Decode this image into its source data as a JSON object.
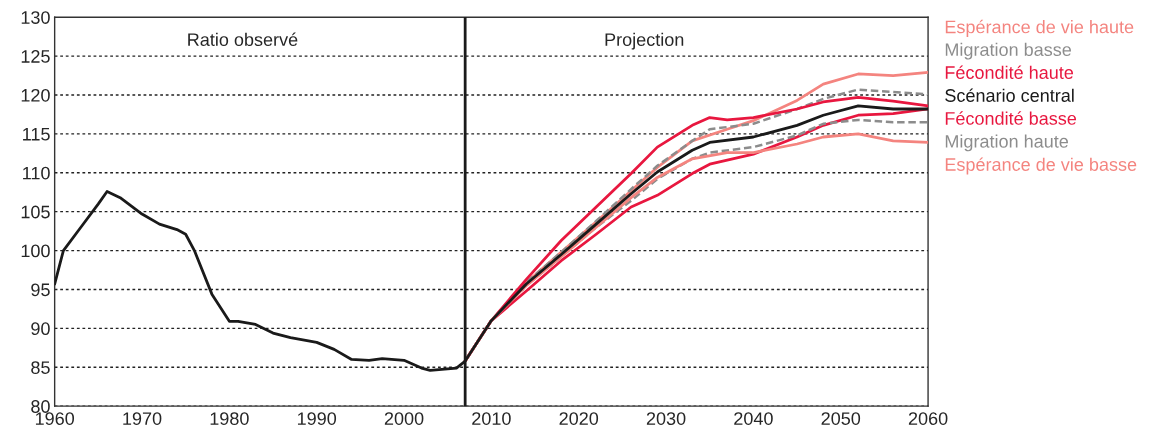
{
  "chart_data": {
    "type": "line",
    "annotations": [
      "Ratio observé",
      "Projection"
    ],
    "series": [
      {
        "name": "Espérance de vie haute",
        "color": "#f4847f",
        "line_style": "solid",
        "x": [
          2007,
          2010,
          2014,
          2018,
          2022,
          2026,
          2029,
          2033,
          2037,
          2040,
          2045,
          2048,
          2052,
          2056,
          2060
        ],
        "values": [
          85.8,
          91,
          95.9,
          99.8,
          103.7,
          107.7,
          110.7,
          114.1,
          115.6,
          116.7,
          119.3,
          121.4,
          122.7,
          122.5,
          122.9
        ]
      },
      {
        "name": "Migration basse",
        "color": "#8c8c8c",
        "line_style": "dashed",
        "x": [
          2007,
          2010,
          2014,
          2018,
          2022,
          2026,
          2029,
          2033,
          2035,
          2040,
          2045,
          2048,
          2052,
          2056,
          2060
        ],
        "values": [
          85.8,
          91,
          95.9,
          99.8,
          103.8,
          107.9,
          110.9,
          114.1,
          115.6,
          116.3,
          118.2,
          119.5,
          120.7,
          120.4,
          120.1
        ]
      },
      {
        "name": "Fécondité haute",
        "color": "#e8173f",
        "line_style": "solid",
        "x": [
          2007,
          2010,
          2014,
          2018,
          2022,
          2026,
          2029,
          2033,
          2035,
          2037,
          2040,
          2045,
          2048,
          2052,
          2056,
          2060
        ],
        "values": [
          85.8,
          91,
          96.3,
          101.3,
          105.6,
          109.9,
          113.3,
          116.1,
          117.1,
          116.8,
          117.1,
          118.2,
          119.1,
          119.7,
          119.2,
          118.6
        ]
      },
      {
        "name": "Scénario central",
        "color": "#1a1a1a",
        "line_style": "solid",
        "x": [
          1960,
          1961,
          1963,
          1965,
          1966,
          1967.5,
          1970,
          1972,
          1974,
          1975,
          1976,
          1978,
          1980,
          1981,
          1983,
          1985,
          1987,
          1990,
          1992,
          1994,
          1996,
          1997.5,
          2000,
          2002,
          2003,
          2005,
          2006,
          2007,
          2010,
          2014,
          2018,
          2022,
          2026,
          2029,
          2033,
          2035,
          2040,
          2045,
          2048,
          2052,
          2056,
          2060
        ],
        "values": [
          95.7,
          100,
          103,
          106,
          107.6,
          106.8,
          104.7,
          103.4,
          102.7,
          102.1,
          100,
          94.4,
          90.9,
          90.9,
          90.5,
          89.4,
          88.8,
          88.2,
          87.3,
          86,
          85.9,
          86.1,
          85.9,
          84.9,
          84.6,
          84.8,
          84.9,
          85.8,
          91,
          95.7,
          99.5,
          103.4,
          107.3,
          110.1,
          112.9,
          113.9,
          114.6,
          116.1,
          117.4,
          118.6,
          118.2,
          118.2
        ]
      },
      {
        "name": "Fécondité basse",
        "color": "#e8173f",
        "line_style": "solid",
        "x": [
          2007,
          2010,
          2014,
          2018,
          2022,
          2026,
          2029,
          2033,
          2035,
          2040,
          2045,
          2048,
          2052,
          2056,
          2060
        ],
        "values": [
          85.8,
          91,
          94.8,
          98.7,
          102.1,
          105.6,
          107.1,
          109.9,
          111.1,
          112.4,
          114.6,
          116.1,
          117.4,
          117.6,
          118.2
        ]
      },
      {
        "name": "Migration haute",
        "color": "#8c8c8c",
        "line_style": "dashed",
        "x": [
          2007,
          2010,
          2014,
          2018,
          2022,
          2026,
          2029,
          2033,
          2035,
          2040,
          2045,
          2048,
          2052,
          2056,
          2060
        ],
        "values": [
          85.8,
          91,
          95.5,
          99.2,
          103,
          106.4,
          109.2,
          111.8,
          112.6,
          113.3,
          114.8,
          116.3,
          116.8,
          116.5,
          116.5
        ]
      },
      {
        "name": "Espérance de vie basse",
        "color": "#f4847f",
        "line_style": "solid",
        "x": [
          2007,
          2010,
          2014,
          2018,
          2022,
          2026,
          2029,
          2033,
          2037,
          2040,
          2045,
          2048,
          2052,
          2056,
          2060
        ],
        "values": [
          85.8,
          91,
          95.5,
          99.2,
          103,
          106.8,
          109.4,
          111.8,
          112.6,
          112.6,
          113.7,
          114.6,
          115,
          114.1,
          113.9
        ]
      }
    ],
    "ref_lines": [
      {
        "axis": "x",
        "value": 2007,
        "color": "#1a1a1a",
        "line_style": "solid"
      }
    ],
    "xlim": [
      1960,
      2060
    ],
    "xticks": [
      1960,
      1970,
      1980,
      1990,
      2000,
      2010,
      2020,
      2030,
      2040,
      2050,
      2060
    ],
    "ylim": [
      80,
      130
    ],
    "yticks": [
      80,
      85,
      90,
      95,
      100,
      105,
      110,
      115,
      120,
      125,
      130
    ],
    "grid": "y",
    "legend": "right"
  }
}
